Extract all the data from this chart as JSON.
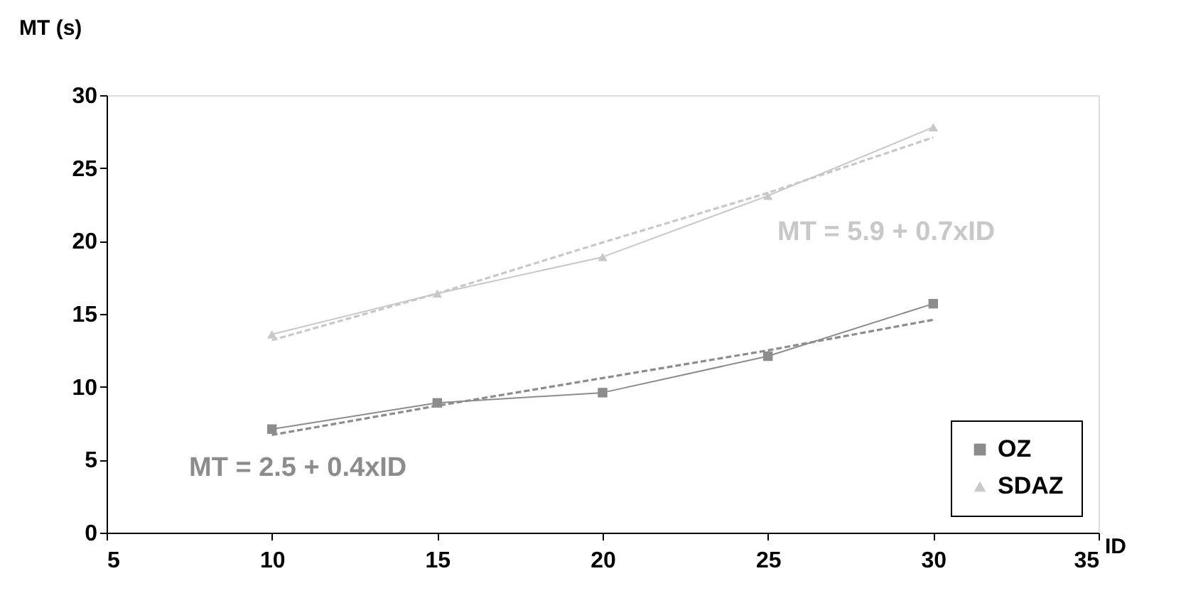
{
  "chart_data": {
    "type": "line",
    "xlabel": "ID",
    "ylabel": "MT (s)",
    "xlim": [
      5,
      35
    ],
    "xticks": [
      5,
      10,
      15,
      20,
      25,
      30,
      35
    ],
    "ylim": [
      0,
      30
    ],
    "yticks": [
      0,
      5,
      10,
      15,
      20,
      25,
      30
    ],
    "grid": false,
    "legend": "bottom right",
    "series": [
      {
        "name": "OZ",
        "color": "#8c8c8c",
        "marker": "square",
        "line_style": "solid",
        "x": [
          10,
          15,
          20,
          25,
          30
        ],
        "values": [
          7.1,
          8.9,
          9.6,
          12.1,
          15.7
        ]
      },
      {
        "name": "SDAZ",
        "color": "#c8c8c8",
        "marker": "triangle",
        "line_style": "solid",
        "x": [
          10,
          15,
          20,
          25,
          30
        ],
        "values": [
          13.6,
          16.4,
          18.9,
          23.1,
          27.8
        ]
      },
      {
        "color": "#8c8c8c",
        "marker": "none",
        "line_style": "dashed",
        "x": [
          10,
          15,
          20,
          25,
          30
        ],
        "values": [
          6.7,
          8.7,
          10.6,
          12.5,
          14.6
        ]
      },
      {
        "color": "#c8c8c8",
        "marker": "none",
        "line_style": "dashed",
        "x": [
          10,
          15,
          20,
          25,
          30
        ],
        "values": [
          13.2,
          16.4,
          19.9,
          23.3,
          27.1
        ]
      }
    ],
    "annotations": [
      "MT = 2.5 + 0.4xID",
      "MT =  5.9 + 0.7xID"
    ]
  }
}
